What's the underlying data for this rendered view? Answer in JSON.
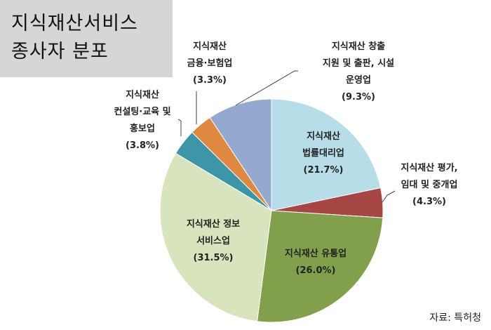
{
  "title_lines": [
    "지식재산서비스",
    "종사자 분포"
  ],
  "source": "자료: 특허청",
  "chart_data": {
    "type": "pie",
    "start": "12 o'clock, clockwise",
    "slices": [
      {
        "label": [
          "지식재산",
          "법률대리업"
        ],
        "pct_text": "(21.7%)",
        "value": 21.7,
        "color": "#b7dde8"
      },
      {
        "label": [
          "지식재산 평가,",
          "임대 및 중개업"
        ],
        "pct_text": "(4.3%)",
        "value": 4.3,
        "color": "#a64645"
      },
      {
        "label": [
          "지식재산 유통업"
        ],
        "pct_text": "(26.0%)",
        "value": 26.0,
        "color": "#82a04c"
      },
      {
        "label": [
          "지식재산 정보",
          "서비스업"
        ],
        "pct_text": "(31.5%)",
        "value": 31.5,
        "color": "#d7e4bd"
      },
      {
        "label": [
          "지식재산",
          "컨설팅·교육 및",
          "홍보업"
        ],
        "pct_text": "(3.8%)",
        "value": 3.8,
        "color": "#3f95a8"
      },
      {
        "label": [
          "지식재산",
          "금융·보험업"
        ],
        "pct_text": "(3.3%)",
        "value": 3.3,
        "color": "#df8841"
      },
      {
        "label": [
          "지식재산 창출",
          "지원 및 출판, 시설",
          "운영업"
        ],
        "pct_text": "(9.3%)",
        "value": 9.3,
        "color": "#95a9ce"
      }
    ]
  }
}
